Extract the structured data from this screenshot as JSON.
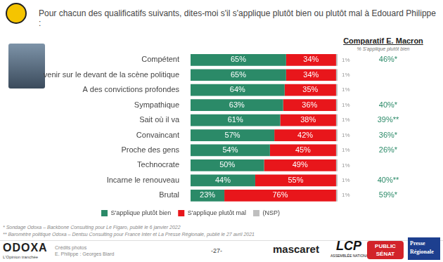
{
  "title": "Pour chacun des qualificatifs suivants, dites-moi s'il s'applique plutôt bien ou plutôt mal à Edouard Philippe :",
  "chart_data": {
    "type": "bar",
    "orientation": "horizontal",
    "stacked": true,
    "data_labels": true,
    "tick_labels": "y",
    "grid": false,
    "legend": "bottom",
    "categories": [
      "Compétent",
      "Va revenir sur le devant de la scène politique",
      "A des convictions profondes",
      "Sympathique",
      "Sait où il va",
      "Convaincant",
      "Proche des gens",
      "Technocrate",
      "Incarne le renouveau",
      "Brutal"
    ],
    "xlim": [
      0,
      100
    ],
    "series": [
      {
        "name": "S'applique plutôt bien",
        "color": "#2b8a68",
        "values": [
          65,
          65,
          64,
          63,
          61,
          57,
          54,
          50,
          44,
          23
        ],
        "value_labels": [
          "65%",
          "65%",
          "64%",
          "63%",
          "61%",
          "57%",
          "54%",
          "50%",
          "44%",
          "23%"
        ]
      },
      {
        "name": "S'applique plutôt mal",
        "color": "#e8161b",
        "values": [
          34,
          34,
          35,
          36,
          38,
          42,
          45,
          49,
          55,
          76
        ],
        "value_labels": [
          "34%",
          "34%",
          "35%",
          "36%",
          "38%",
          "42%",
          "45%",
          "49%",
          "55%",
          "76%"
        ]
      },
      {
        "name": "(NSP)",
        "color": "#bfbfbf",
        "values": [
          1,
          1,
          1,
          1,
          1,
          1,
          1,
          1,
          1,
          1
        ],
        "value_labels": [
          "1%",
          "1%",
          "1%",
          "1%",
          "1%",
          "1%",
          "1%",
          "1%",
          "1%",
          "1%"
        ]
      }
    ],
    "comparison": {
      "title": "Comparatif E. Macron",
      "subtitle": "% S'applique plutôt bien",
      "color": "#2b8a68",
      "values": [
        46,
        null,
        null,
        40,
        39,
        36,
        26,
        null,
        40,
        59
      ],
      "value_labels": [
        "46%*",
        null,
        null,
        "40%*",
        "39%**",
        "36%*",
        "26%*",
        null,
        "40%**",
        "59%*"
      ]
    }
  },
  "footnotes": [
    "* Sondage Odoxa – Backbone Consulting pour Le Figaro, publié le 6 janvier 2022",
    "** Baromètre politique Odoxa – Dentsu Consulting pour France Inter et La Presse Régionale, publié le 27 avril 2021"
  ],
  "footer": {
    "brand": "ODOXA",
    "tagline": "L'Opinion tranchée",
    "credits": [
      "Crédits photos",
      "E. Philippe : Georges Biard"
    ],
    "page": "-27-",
    "logos": {
      "mascaret": "mascaret",
      "lcp": "LCP",
      "lcp_sub": "ASSEMBLÉE NATIONALE",
      "public_senat": [
        "PUBLIC",
        "SÉNAT"
      ],
      "presse": [
        "Presse",
        "Régionale"
      ]
    }
  }
}
